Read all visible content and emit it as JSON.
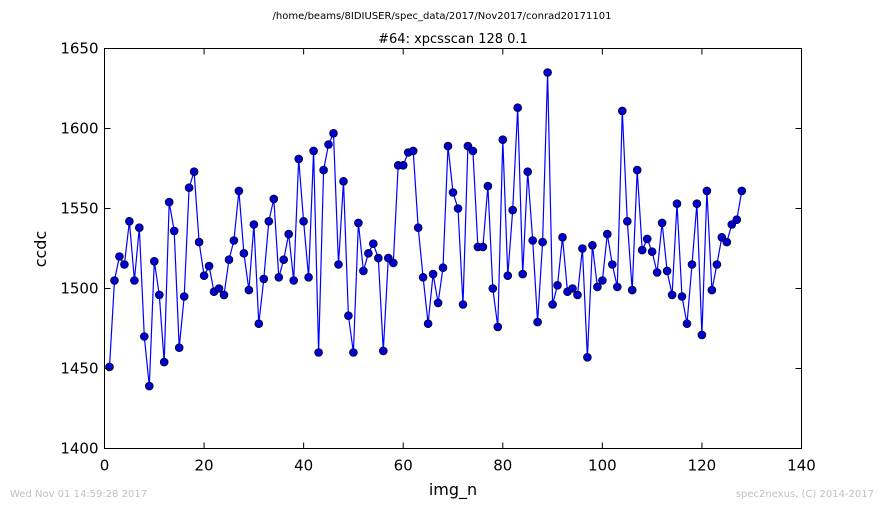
{
  "supertitle": "/home/beams/8IDIUSER/spec_data/2017/Nov2017/conrad20171101",
  "footer_left": "Wed Nov 01 14:59:28 2017",
  "footer_right": "spec2nexus, (C) 2014-2017",
  "colors": {
    "series": "#0000ff",
    "marker_fill": "#0000cc",
    "footer_text": "#c0c0c0"
  },
  "chart_data": {
    "type": "line",
    "title": "#64: xpcsscan 128 0.1",
    "xlabel": "img_n",
    "ylabel": "ccdc",
    "xlim": [
      0,
      140
    ],
    "ylim": [
      1400,
      1650
    ],
    "xticks": [
      0,
      20,
      40,
      60,
      80,
      100,
      120,
      140
    ],
    "yticks": [
      1400,
      1450,
      1500,
      1550,
      1600,
      1650
    ],
    "grid": false,
    "series": [
      {
        "marker": "circle",
        "x": [
          1,
          2,
          3,
          4,
          5,
          6,
          7,
          8,
          9,
          10,
          11,
          12,
          13,
          14,
          15,
          16,
          17,
          18,
          19,
          20,
          21,
          22,
          23,
          24,
          25,
          26,
          27,
          28,
          29,
          30,
          31,
          32,
          33,
          34,
          35,
          36,
          37,
          38,
          39,
          40,
          41,
          42,
          43,
          44,
          45,
          46,
          47,
          48,
          49,
          50,
          51,
          52,
          53,
          54,
          55,
          56,
          57,
          58,
          59,
          60,
          61,
          62,
          63,
          64,
          65,
          66,
          67,
          68,
          69,
          70,
          71,
          72,
          73,
          74,
          75,
          76,
          77,
          78,
          79,
          80,
          81,
          82,
          83,
          84,
          85,
          86,
          87,
          88,
          89,
          90,
          91,
          92,
          93,
          94,
          95,
          96,
          97,
          98,
          99,
          100,
          101,
          102,
          103,
          104,
          105,
          106,
          107,
          108,
          109,
          110,
          111,
          112,
          113,
          114,
          115,
          116,
          117,
          118,
          119,
          120,
          121,
          122,
          123,
          124,
          125,
          126,
          127,
          128
        ],
        "y": [
          1451,
          1505,
          1520,
          1515,
          1542,
          1505,
          1538,
          1470,
          1439,
          1517,
          1496,
          1454,
          1554,
          1536,
          1463,
          1495,
          1563,
          1573,
          1529,
          1508,
          1514,
          1498,
          1500,
          1496,
          1518,
          1530,
          1561,
          1522,
          1499,
          1540,
          1478,
          1506,
          1542,
          1556,
          1507,
          1518,
          1534,
          1505,
          1581,
          1542,
          1507,
          1586,
          1460,
          1574,
          1590,
          1597,
          1515,
          1567,
          1483,
          1460,
          1541,
          1511,
          1522,
          1528,
          1519,
          1461,
          1519,
          1516,
          1577,
          1577,
          1585,
          1586,
          1538,
          1507,
          1478,
          1509,
          1491,
          1513,
          1589,
          1560,
          1550,
          1490,
          1589,
          1586,
          1526,
          1526,
          1564,
          1500,
          1476,
          1593,
          1508,
          1549,
          1613,
          1509,
          1573,
          1530,
          1479,
          1529,
          1635,
          1490,
          1502,
          1532,
          1498,
          1500,
          1496,
          1525,
          1457,
          1527,
          1501,
          1505,
          1534,
          1515,
          1501,
          1611,
          1542,
          1499,
          1574,
          1524,
          1531,
          1523,
          1510,
          1541,
          1511,
          1496,
          1553,
          1495,
          1478,
          1515,
          1553,
          1471,
          1561,
          1499,
          1515,
          1532,
          1529,
          1540,
          1543,
          1561
        ]
      }
    ]
  }
}
